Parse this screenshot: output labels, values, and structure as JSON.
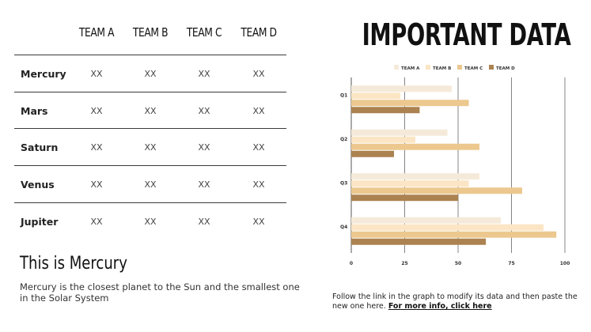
{
  "title": "IMPORTANT DATA",
  "table": {
    "columns": [
      "TEAM A",
      "TEAM B",
      "TEAM C",
      "TEAM D"
    ],
    "rows": [
      {
        "name": "Mercury",
        "cells": [
          "XX",
          "XX",
          "XX",
          "XX"
        ]
      },
      {
        "name": "Mars",
        "cells": [
          "XX",
          "XX",
          "XX",
          "XX"
        ]
      },
      {
        "name": "Saturn",
        "cells": [
          "XX",
          "XX",
          "XX",
          "XX"
        ]
      },
      {
        "name": "Venus",
        "cells": [
          "XX",
          "XX",
          "XX",
          "XX"
        ]
      },
      {
        "name": "Jupiter",
        "cells": [
          "XX",
          "XX",
          "XX",
          "XX"
        ]
      }
    ]
  },
  "section": {
    "heading": "This is Mercury",
    "text": "Mercury is the closest planet to the Sun and the smallest one in the Solar System"
  },
  "note": {
    "text": "Follow the link in the graph to modify its data and then paste the new one here. ",
    "link": "For more info, click here"
  },
  "chart_data": {
    "type": "bar",
    "orientation": "horizontal",
    "categories": [
      "Q1",
      "Q2",
      "Q3",
      "Q4"
    ],
    "series": [
      {
        "name": "TEAM A",
        "color": "#f5ead9",
        "values": [
          47,
          45,
          60,
          70
        ]
      },
      {
        "name": "TEAM B",
        "color": "#fbe5c4",
        "values": [
          23,
          30,
          55,
          90
        ]
      },
      {
        "name": "TEAM C",
        "color": "#ecc88f",
        "values": [
          55,
          60,
          80,
          96
        ]
      },
      {
        "name": "TEAM D",
        "color": "#ab8250",
        "values": [
          32,
          20,
          50,
          63
        ]
      }
    ],
    "xlim": [
      0,
      100
    ],
    "xticks": [
      0,
      25,
      50,
      75,
      100
    ],
    "grid": true,
    "legend": "top"
  }
}
